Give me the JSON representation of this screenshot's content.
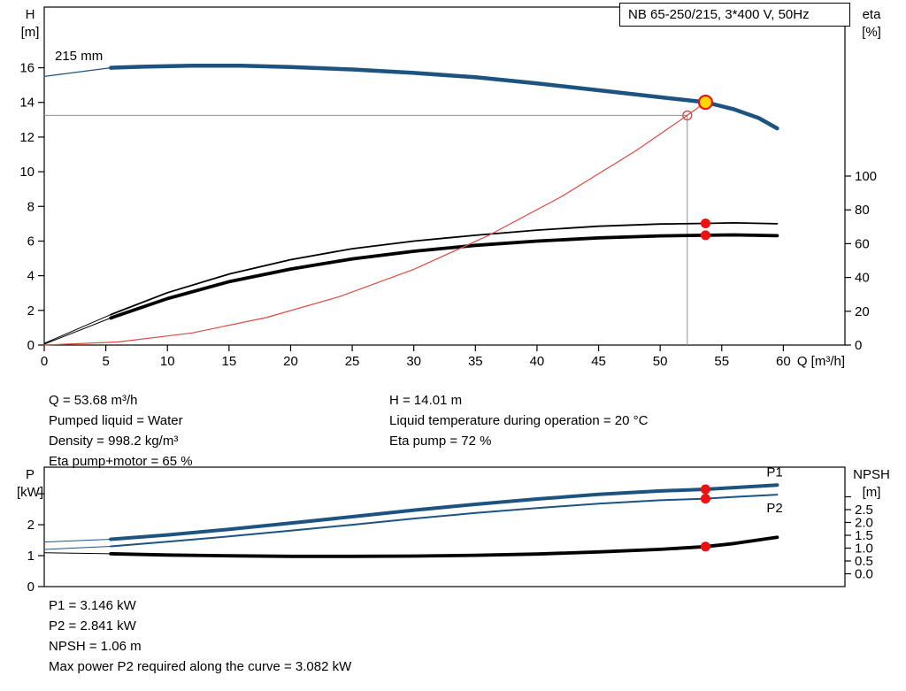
{
  "colors": {
    "background": "#ffffff",
    "axis": "#000000",
    "curve_blue": "#1d5380",
    "curve_black": "#000000",
    "system_red": "#dd4b43",
    "marker_red": "#ee1111",
    "duty_fill": "#ffd800",
    "guide_gray": "#909090",
    "label_blue": "#2e75b6"
  },
  "info_top": {
    "left": [
      "Q = 53.68 m³/h",
      "Pumped liquid = Water",
      "Density = 998.2 kg/m³",
      "Eta pump+motor = 65 %"
    ],
    "right": [
      "H = 14.01 m",
      "Liquid temperature during operation = 20 °C",
      "Eta pump = 72 %"
    ]
  },
  "info_bottom": [
    "P1 = 3.146 kW",
    "P2 = 2.841 kW",
    "NPSH = 1.06 m",
    "Max power P2 required along the curve = 3.082 kW"
  ],
  "chart_data": [
    {
      "id": "qh-eta-chart",
      "type": "line",
      "title": "NB 65-250/215, 3*400 V, 50Hz",
      "impeller_label": "215 mm",
      "xlabel": "Q [m³/h]",
      "ylabel_left": [
        "H",
        "[m]"
      ],
      "ylabel_right": [
        "eta",
        "[%]"
      ],
      "xlim": [
        0,
        65
      ],
      "ylim_left": [
        0,
        19.5
      ],
      "ylim_right": [
        0,
        200
      ],
      "x_ticks": [
        0,
        5,
        10,
        15,
        20,
        25,
        30,
        35,
        40,
        45,
        50,
        55,
        60
      ],
      "y_ticks_left": [
        0,
        2,
        4,
        6,
        8,
        10,
        12,
        14,
        16
      ],
      "y_ticks_right": [
        0,
        20,
        40,
        60,
        80,
        100
      ],
      "grid": false,
      "series": [
        {
          "name": "head-curve-lead",
          "axis": "left",
          "color": "curve_blue",
          "width": 1.3,
          "points": [
            [
              0,
              15.5
            ],
            [
              5.4,
              16.0
            ]
          ]
        },
        {
          "name": "head-curve-215mm",
          "axis": "left",
          "color": "curve_blue",
          "width": 4.5,
          "points": [
            [
              5.4,
              16.0
            ],
            [
              8,
              16.06
            ],
            [
              12,
              16.12
            ],
            [
              16,
              16.12
            ],
            [
              20,
              16.04
            ],
            [
              25,
              15.9
            ],
            [
              30,
              15.7
            ],
            [
              35,
              15.45
            ],
            [
              40,
              15.1
            ],
            [
              45,
              14.7
            ],
            [
              50,
              14.3
            ],
            [
              53.68,
              14.01
            ],
            [
              56,
              13.6
            ],
            [
              58,
              13.1
            ],
            [
              59.5,
              12.5
            ]
          ]
        },
        {
          "name": "eta-pump-lead",
          "axis": "right",
          "color": "curve_black",
          "width": 1,
          "points": [
            [
              0,
              1
            ],
            [
              5.4,
              18
            ]
          ]
        },
        {
          "name": "eta-pump-curve",
          "axis": "right",
          "color": "curve_black",
          "width": 1.8,
          "points": [
            [
              5.4,
              18
            ],
            [
              10,
              31
            ],
            [
              15,
              42
            ],
            [
              20,
              50.5
            ],
            [
              25,
              57
            ],
            [
              30,
              61.5
            ],
            [
              35,
              65
            ],
            [
              40,
              68
            ],
            [
              45,
              70.3
            ],
            [
              50,
              71.6
            ],
            [
              53.68,
              72
            ],
            [
              56,
              72.3
            ],
            [
              59.5,
              71.8
            ]
          ]
        },
        {
          "name": "eta-pump-motor-lead",
          "axis": "right",
          "color": "curve_black",
          "width": 1,
          "points": [
            [
              0,
              0.5
            ],
            [
              5.4,
              16
            ]
          ]
        },
        {
          "name": "eta-pump-motor-curve",
          "axis": "right",
          "color": "curve_black",
          "width": 3.8,
          "points": [
            [
              5.4,
              16
            ],
            [
              10,
              27.5
            ],
            [
              15,
              37.5
            ],
            [
              20,
              45
            ],
            [
              25,
              51
            ],
            [
              30,
              55.5
            ],
            [
              35,
              59
            ],
            [
              40,
              61.5
            ],
            [
              45,
              63.4
            ],
            [
              50,
              64.6
            ],
            [
              53.68,
              65
            ],
            [
              56,
              65.2
            ],
            [
              59.5,
              64.7
            ]
          ]
        },
        {
          "name": "system-curve",
          "axis": "left",
          "color": "system_red",
          "width": 1.2,
          "points": [
            [
              0,
              0
            ],
            [
              6,
              0.18
            ],
            [
              12,
              0.7
            ],
            [
              18,
              1.58
            ],
            [
              24,
              2.8
            ],
            [
              30,
              4.37
            ],
            [
              36,
              6.3
            ],
            [
              42,
              8.57
            ],
            [
              48,
              11.2
            ],
            [
              52.2,
              13.25
            ],
            [
              53.68,
              14.01
            ]
          ]
        }
      ],
      "guides": [
        {
          "dir": "v",
          "q": 52.2,
          "v1": 0,
          "v2": 13.3,
          "name": "duty-guide-vertical"
        },
        {
          "dir": "h",
          "v": 13.25,
          "q1": 0,
          "q2": 52.2,
          "name": "duty-guide-horizontal"
        }
      ],
      "markers": [
        {
          "style": "open",
          "q": 52.2,
          "v": 13.25,
          "axis": "left",
          "name": "requested-duty-point"
        },
        {
          "style": "duty",
          "q": 53.68,
          "v": 14.01,
          "axis": "left",
          "name": "actual-duty-point"
        },
        {
          "style": "dot",
          "q": 53.68,
          "v": 72,
          "axis": "right",
          "name": "eta-pump-duty-point"
        },
        {
          "style": "dot",
          "q": 53.68,
          "v": 65,
          "axis": "right",
          "name": "eta-pump-motor-duty-point"
        }
      ]
    },
    {
      "id": "power-npsh-chart",
      "type": "line",
      "title": "",
      "xlabel": "",
      "ylabel_left": [
        "P",
        "[kW]"
      ],
      "ylabel_right": [
        "NPSH",
        "[m]"
      ],
      "xlim": [
        0,
        65
      ],
      "ylim_left": [
        0,
        3.86
      ],
      "ylim_right": [
        -0.5,
        4.155
      ],
      "x_ticks": [],
      "y_ticks_left": [
        0,
        1,
        2
      ],
      "y_ticks_left_minor": [
        3
      ],
      "y_ticks_right": [
        0,
        0.5,
        1,
        1.5,
        2,
        2.5
      ],
      "y_ticks_right_labels": [
        "0.0",
        "0.5",
        "1.0",
        "1.5",
        "2.0",
        "2.5"
      ],
      "y_ticks_right_minor": [
        3
      ],
      "grid": false,
      "series": [
        {
          "name": "p1-lead",
          "axis": "left",
          "color": "curve_blue",
          "width": 1,
          "points": [
            [
              0,
              1.44
            ],
            [
              5.4,
              1.53
            ]
          ]
        },
        {
          "name": "p1-curve",
          "axis": "left",
          "color": "curve_blue",
          "width": 4,
          "label": "P1",
          "label_dy": -10,
          "points": [
            [
              5.4,
              1.53
            ],
            [
              10,
              1.67
            ],
            [
              15,
              1.85
            ],
            [
              20,
              2.05
            ],
            [
              25,
              2.26
            ],
            [
              30,
              2.47
            ],
            [
              35,
              2.66
            ],
            [
              40,
              2.83
            ],
            [
              45,
              2.98
            ],
            [
              50,
              3.09
            ],
            [
              53.68,
              3.146
            ],
            [
              56,
              3.2
            ],
            [
              59.5,
              3.28
            ]
          ]
        },
        {
          "name": "p2-lead",
          "axis": "left",
          "color": "curve_blue",
          "width": 1,
          "points": [
            [
              0,
              1.2
            ],
            [
              5.4,
              1.3
            ]
          ]
        },
        {
          "name": "p2-curve",
          "axis": "left",
          "color": "curve_blue",
          "width": 2,
          "label": "P2",
          "label_dy": 20,
          "points": [
            [
              5.4,
              1.3
            ],
            [
              10,
              1.45
            ],
            [
              15,
              1.62
            ],
            [
              20,
              1.81
            ],
            [
              25,
              2.0
            ],
            [
              30,
              2.2
            ],
            [
              35,
              2.38
            ],
            [
              40,
              2.54
            ],
            [
              45,
              2.68
            ],
            [
              50,
              2.79
            ],
            [
              53.68,
              2.841
            ],
            [
              56,
              2.9
            ],
            [
              59.5,
              2.97
            ]
          ]
        },
        {
          "name": "npsh-lead",
          "axis": "right",
          "color": "curve_black",
          "width": 1,
          "points": [
            [
              0,
              0.82
            ],
            [
              5.4,
              0.78
            ]
          ]
        },
        {
          "name": "npsh-curve",
          "axis": "right",
          "color": "curve_black",
          "width": 3.8,
          "points": [
            [
              5.4,
              0.78
            ],
            [
              10,
              0.73
            ],
            [
              15,
              0.7
            ],
            [
              20,
              0.68
            ],
            [
              25,
              0.68
            ],
            [
              30,
              0.69
            ],
            [
              35,
              0.72
            ],
            [
              40,
              0.77
            ],
            [
              45,
              0.85
            ],
            [
              50,
              0.95
            ],
            [
              53.68,
              1.06
            ],
            [
              56,
              1.18
            ],
            [
              59.5,
              1.42
            ]
          ]
        }
      ],
      "guides": [],
      "markers": [
        {
          "style": "dot",
          "q": 53.68,
          "v": 3.146,
          "axis": "left",
          "name": "p1-duty-point"
        },
        {
          "style": "dot",
          "q": 53.68,
          "v": 2.841,
          "axis": "left",
          "name": "p2-duty-point"
        },
        {
          "style": "dot",
          "q": 53.68,
          "v": 1.06,
          "axis": "right",
          "name": "npsh-duty-point"
        }
      ]
    }
  ]
}
